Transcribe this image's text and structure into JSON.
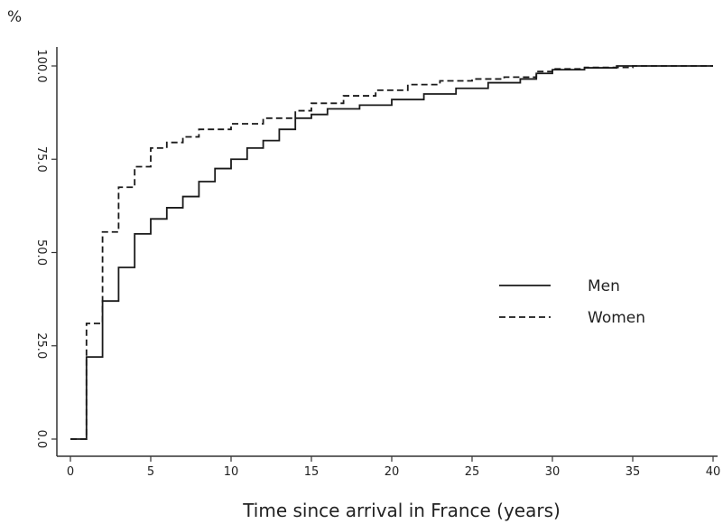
{
  "chart_data": {
    "type": "line",
    "ylabel": "%",
    "xlabel": "Time since arrival in France (years)",
    "xlim": [
      0,
      40
    ],
    "ylim": [
      0,
      100
    ],
    "xticks": [
      0,
      5,
      10,
      15,
      20,
      25,
      30,
      35,
      40
    ],
    "xtick_labels": [
      "0",
      "5",
      "10",
      "15",
      "20",
      "25",
      "30",
      "35",
      "40"
    ],
    "yticks": [
      0,
      25,
      50,
      75,
      100
    ],
    "ytick_labels": [
      "0.0",
      "25.0",
      "50.0",
      "75.0",
      "100.0"
    ],
    "grid": false,
    "legend_position": "right-center",
    "series": [
      {
        "name": "Men",
        "style": "solid",
        "color": "#1a1a1a",
        "x": [
          0,
          1,
          2,
          3,
          4,
          5,
          6,
          7,
          8,
          9,
          10,
          11,
          12,
          13,
          14,
          15,
          16,
          18,
          20,
          22,
          24,
          26,
          28,
          29,
          30,
          32,
          34,
          40
        ],
        "y": [
          0,
          22,
          37,
          46,
          55,
          59,
          62,
          65,
          69,
          72.5,
          75,
          78,
          80,
          83,
          86,
          87,
          88.5,
          89.5,
          91,
          92.5,
          94,
          95.5,
          96.5,
          98,
          99,
          99.5,
          100,
          100
        ]
      },
      {
        "name": "Women",
        "style": "dashed",
        "color": "#1a1a1a",
        "x": [
          0,
          1,
          2,
          3,
          4,
          5,
          6,
          7,
          8,
          10,
          12,
          14,
          15,
          17,
          19,
          21,
          23,
          25,
          27,
          29,
          30,
          32,
          35,
          40
        ],
        "y": [
          0,
          31,
          55.5,
          67.5,
          73,
          78,
          79.5,
          81,
          83,
          84.5,
          86,
          88,
          90,
          92,
          93.5,
          95,
          96,
          96.5,
          97,
          98.5,
          99.2,
          99.6,
          100,
          100
        ]
      }
    ]
  }
}
